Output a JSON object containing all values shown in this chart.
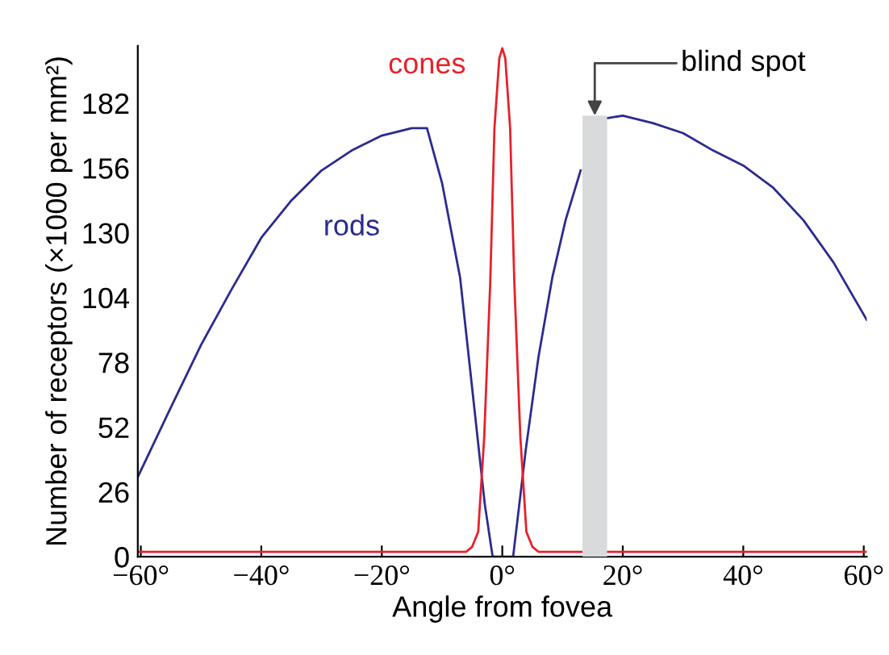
{
  "chart_data": {
    "type": "line",
    "xlabel": "Angle from fovea",
    "ylabel": "Number of receptors (×1000 per mm²)",
    "xlim": [
      -60.5,
      60.5
    ],
    "ylim": [
      0,
      205
    ],
    "xticks": [
      {
        "value": -60,
        "label": "−60°"
      },
      {
        "value": -40,
        "label": "−40°"
      },
      {
        "value": -20,
        "label": "−20°"
      },
      {
        "value": 0,
        "label": "0°"
      },
      {
        "value": 20,
        "label": "20°"
      },
      {
        "value": 40,
        "label": "40°"
      },
      {
        "value": 60,
        "label": "60°"
      }
    ],
    "yticks": [
      0,
      26,
      52,
      78,
      104,
      130,
      156,
      182
    ],
    "grid": false,
    "legend": false,
    "series": [
      {
        "name": "rods",
        "color": "#2b2b8f",
        "x": [
          -60.5,
          -55,
          -50,
          -45,
          -40,
          -35,
          -30,
          -25,
          -20,
          -15,
          -12.5,
          -10,
          -7,
          -4.7,
          -2.9,
          -1.6,
          1.8,
          3.9,
          6,
          8.3,
          10.5,
          13,
          15,
          17.5,
          20,
          25,
          30,
          35,
          40,
          45,
          50,
          55,
          60.5
        ],
        "values": [
          32,
          60,
          85,
          107,
          128,
          143,
          155,
          163,
          169,
          172,
          172,
          150,
          112,
          61,
          21,
          0,
          0,
          43,
          80,
          112,
          135,
          155,
          null,
          176,
          177,
          174,
          170,
          163,
          157,
          148,
          135,
          118,
          95
        ]
      },
      {
        "name": "cones",
        "color": "#e8202a",
        "x": [
          -60.5,
          -8,
          -6,
          -5,
          -4,
          -3,
          -2,
          -1.3,
          -0.5,
          0,
          0.5,
          1.3,
          2,
          3,
          4,
          5,
          6,
          8,
          60.5
        ],
        "values": [
          2,
          2,
          2,
          4,
          10,
          48,
          110,
          172,
          200,
          204,
          200,
          172,
          110,
          48,
          10,
          4,
          2,
          2,
          2
        ]
      }
    ],
    "bands": [
      {
        "axis": "x",
        "from": 13.3,
        "to": 17.4,
        "label": "blind spot",
        "color": "#d9dadb"
      }
    ]
  }
}
